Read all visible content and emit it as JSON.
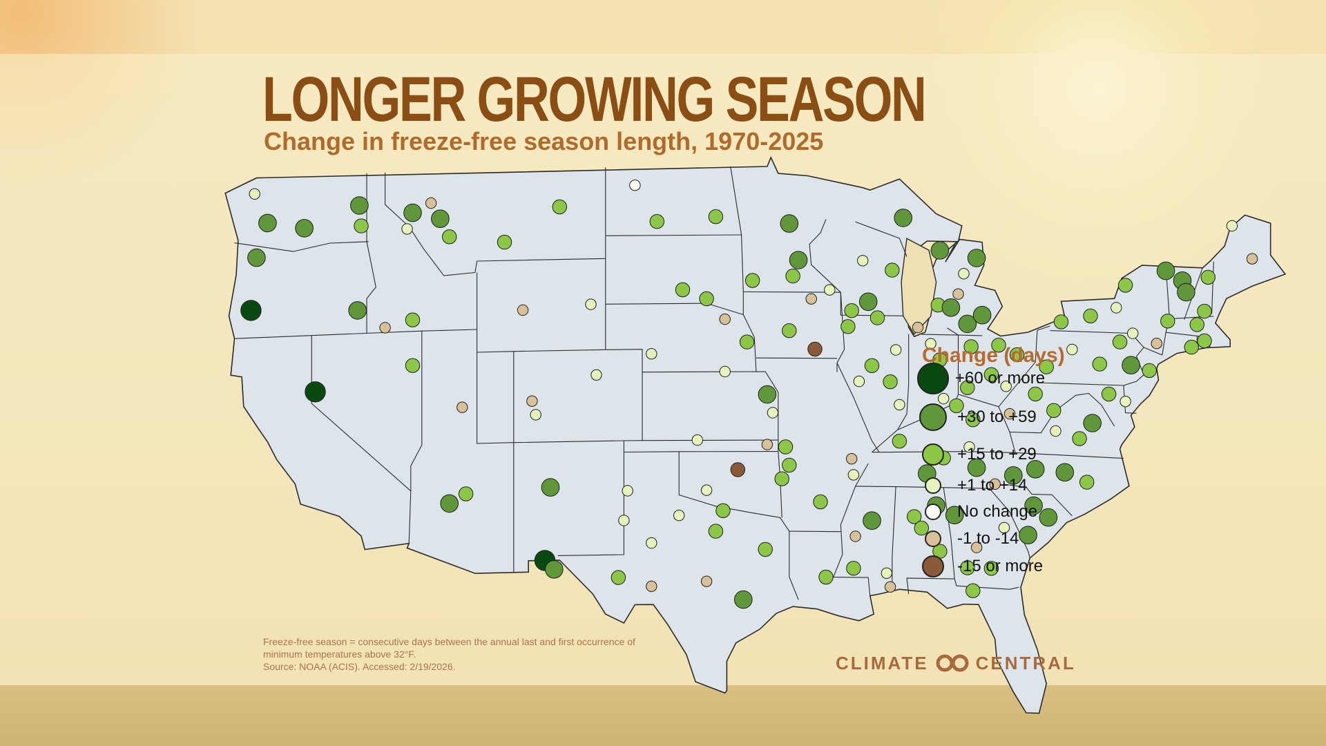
{
  "title": "LONGER GROWING SEASON",
  "subtitle": "Change in freeze-free season length, 1970-2025",
  "legend": {
    "title": "Change (days)",
    "items": [
      {
        "key": "c60",
        "label": "+60 or more",
        "color": "#0a4a12",
        "size": 46
      },
      {
        "key": "c30",
        "label": "+30 to +59",
        "color": "#5f973a",
        "size": 40
      },
      {
        "key": "c15",
        "label": "+15 to +29",
        "color": "#8cc748",
        "size": 32
      },
      {
        "key": "c1",
        "label": "+1 to +14",
        "color": "#e7f2bd",
        "size": 24
      },
      {
        "key": "c0",
        "label": "No change",
        "color": "#fbfbf6",
        "size": 24
      },
      {
        "key": "m1",
        "label": "-1 to -14",
        "color": "#d8c199",
        "size": 24
      },
      {
        "key": "m15",
        "label": "-15 or more",
        "color": "#8b5a3b",
        "size": 32
      }
    ]
  },
  "footnote": {
    "line1": "Freeze-free season = consecutive days between the annual last and first occurrence of",
    "line2": "minimum temperatures above 32°F.",
    "line3": "Source: NOAA (ACIS). Accessed: 2/19/2026."
  },
  "brand": {
    "left": "CLIMATE",
    "right": "CENTRAL"
  },
  "colors": {
    "map_fill": "#dde4ea",
    "state_line": "#2a2a2a",
    "title": "#8a4d14",
    "subtitle": "#b06a2c"
  },
  "stations": [
    {
      "lon": -123.1,
      "lat": 48.3,
      "c": "c1"
    },
    {
      "lon": -122.4,
      "lat": 47.0,
      "c": "c30"
    },
    {
      "lon": -120.4,
      "lat": 46.7,
      "c": "c30"
    },
    {
      "lon": -117.4,
      "lat": 47.6,
      "c": "c30"
    },
    {
      "lon": -117.3,
      "lat": 46.7,
      "c": "c15"
    },
    {
      "lon": -123.0,
      "lat": 45.5,
      "c": "c30"
    },
    {
      "lon": -123.3,
      "lat": 43.2,
      "c": "c60"
    },
    {
      "lon": -117.5,
      "lat": 43.0,
      "c": "c30"
    },
    {
      "lon": -114.5,
      "lat": 47.2,
      "c": "c30"
    },
    {
      "lon": -113.5,
      "lat": 47.6,
      "c": "m1"
    },
    {
      "lon": -113.0,
      "lat": 46.9,
      "c": "c30"
    },
    {
      "lon": -114.8,
      "lat": 46.5,
      "c": "c1"
    },
    {
      "lon": -112.5,
      "lat": 46.1,
      "c": "c15"
    },
    {
      "lon": -109.5,
      "lat": 45.8,
      "c": "c15"
    },
    {
      "lon": -106.5,
      "lat": 47.3,
      "c": "c15"
    },
    {
      "lon": -102.4,
      "lat": 48.2,
      "c": "c0"
    },
    {
      "lon": -101.2,
      "lat": 46.6,
      "c": "c15"
    },
    {
      "lon": -98.0,
      "lat": 46.8,
      "c": "c15"
    },
    {
      "lon": -116.0,
      "lat": 42.2,
      "c": "m1"
    },
    {
      "lon": -114.5,
      "lat": 42.5,
      "c": "c15"
    },
    {
      "lon": -119.8,
      "lat": 39.5,
      "c": "c60"
    },
    {
      "lon": -114.5,
      "lat": 40.5,
      "c": "c15"
    },
    {
      "lon": -108.5,
      "lat": 42.8,
      "c": "m1"
    },
    {
      "lon": -104.8,
      "lat": 43.0,
      "c": "c1"
    },
    {
      "lon": -99.8,
      "lat": 43.6,
      "c": "c15"
    },
    {
      "lon": -98.5,
      "lat": 43.2,
      "c": "c15"
    },
    {
      "lon": -96.0,
      "lat": 44.0,
      "c": "c15"
    },
    {
      "lon": -111.8,
      "lat": 38.6,
      "c": "m1"
    },
    {
      "lon": -108.0,
      "lat": 38.8,
      "c": "m1"
    },
    {
      "lon": -107.8,
      "lat": 38.2,
      "c": "c1"
    },
    {
      "lon": -104.5,
      "lat": 39.9,
      "c": "c1"
    },
    {
      "lon": -101.5,
      "lat": 40.8,
      "c": "c1"
    },
    {
      "lon": -97.5,
      "lat": 42.3,
      "c": "m1"
    },
    {
      "lon": -96.3,
      "lat": 41.3,
      "c": "c15"
    },
    {
      "lon": -97.5,
      "lat": 40.0,
      "c": "c1"
    },
    {
      "lon": -95.2,
      "lat": 39.0,
      "c": "c30"
    },
    {
      "lon": -94.9,
      "lat": 38.2,
      "c": "c1"
    },
    {
      "lon": -99.0,
      "lat": 37.0,
      "c": "c1"
    },
    {
      "lon": -95.2,
      "lat": 36.8,
      "c": "m1"
    },
    {
      "lon": -94.2,
      "lat": 36.7,
      "c": "c15"
    },
    {
      "lon": -96.8,
      "lat": 35.7,
      "c": "m15"
    },
    {
      "lon": -112.5,
      "lat": 34.4,
      "c": "c30"
    },
    {
      "lon": -111.6,
      "lat": 34.8,
      "c": "c15"
    },
    {
      "lon": -107.0,
      "lat": 35.0,
      "c": "c30"
    },
    {
      "lon": -107.3,
      "lat": 31.8,
      "c": "c60"
    },
    {
      "lon": -106.8,
      "lat": 31.4,
      "c": "c30"
    },
    {
      "lon": -102.8,
      "lat": 34.8,
      "c": "c1"
    },
    {
      "lon": -103.0,
      "lat": 33.5,
      "c": "c1"
    },
    {
      "lon": -101.5,
      "lat": 32.5,
      "c": "c1"
    },
    {
      "lon": -103.3,
      "lat": 31.0,
      "c": "c15"
    },
    {
      "lon": -101.5,
      "lat": 30.6,
      "c": "m1"
    },
    {
      "lon": -100.0,
      "lat": 33.7,
      "c": "c1"
    },
    {
      "lon": -98.5,
      "lat": 34.8,
      "c": "c1"
    },
    {
      "lon": -97.6,
      "lat": 33.9,
      "c": "c15"
    },
    {
      "lon": -98.0,
      "lat": 33.0,
      "c": "c15"
    },
    {
      "lon": -98.5,
      "lat": 30.8,
      "c": "m1"
    },
    {
      "lon": -96.5,
      "lat": 30.0,
      "c": "c30"
    },
    {
      "lon": -95.3,
      "lat": 32.2,
      "c": "c15"
    },
    {
      "lon": -94.4,
      "lat": 35.3,
      "c": "c15"
    },
    {
      "lon": -94.0,
      "lat": 35.9,
      "c": "c15"
    },
    {
      "lon": -92.3,
      "lat": 34.3,
      "c": "c15"
    },
    {
      "lon": -92.0,
      "lat": 31.0,
      "c": "c15"
    },
    {
      "lon": -90.4,
      "lat": 32.8,
      "c": "m1"
    },
    {
      "lon": -90.5,
      "lat": 31.4,
      "c": "c15"
    },
    {
      "lon": -89.5,
      "lat": 33.5,
      "c": "c30"
    },
    {
      "lon": -88.7,
      "lat": 31.2,
      "c": "c1"
    },
    {
      "lon": -88.5,
      "lat": 30.6,
      "c": "m1"
    },
    {
      "lon": -87.2,
      "lat": 33.7,
      "c": "c15"
    },
    {
      "lon": -86.8,
      "lat": 33.2,
      "c": "c15"
    },
    {
      "lon": -86.0,
      "lat": 34.2,
      "c": "c30"
    },
    {
      "lon": -85.0,
      "lat": 33.8,
      "c": "c30"
    },
    {
      "lon": -85.8,
      "lat": 32.2,
      "c": "c15"
    },
    {
      "lon": -84.3,
      "lat": 31.5,
      "c": "c15"
    },
    {
      "lon": -84.0,
      "lat": 30.5,
      "c": "c15"
    },
    {
      "lon": -90.5,
      "lat": 35.5,
      "c": "c1"
    },
    {
      "lon": -90.6,
      "lat": 36.2,
      "c": "m1"
    },
    {
      "lon": -88.0,
      "lat": 37.0,
      "c": "c15"
    },
    {
      "lon": -86.5,
      "lat": 35.6,
      "c": "c30"
    },
    {
      "lon": -85.6,
      "lat": 36.3,
      "c": "c15"
    },
    {
      "lon": -84.2,
      "lat": 36.8,
      "c": "c1"
    },
    {
      "lon": -83.8,
      "lat": 35.9,
      "c": "c30"
    },
    {
      "lon": -82.8,
      "lat": 35.2,
      "c": "m1"
    },
    {
      "lon": -81.8,
      "lat": 35.6,
      "c": "c30"
    },
    {
      "lon": -80.6,
      "lat": 35.9,
      "c": "c30"
    },
    {
      "lon": -79.0,
      "lat": 35.8,
      "c": "c30"
    },
    {
      "lon": -77.8,
      "lat": 35.4,
      "c": "c15"
    },
    {
      "lon": -80.7,
      "lat": 34.3,
      "c": "c30"
    },
    {
      "lon": -79.9,
      "lat": 33.8,
      "c": "c30"
    },
    {
      "lon": -81.0,
      "lat": 33.0,
      "c": "c30"
    },
    {
      "lon": -82.3,
      "lat": 33.3,
      "c": "c1"
    },
    {
      "lon": -83.8,
      "lat": 32.4,
      "c": "m1"
    },
    {
      "lon": -83.0,
      "lat": 31.5,
      "c": "c15"
    },
    {
      "lon": -94.0,
      "lat": 46.5,
      "c": "c30"
    },
    {
      "lon": -93.5,
      "lat": 44.9,
      "c": "c30"
    },
    {
      "lon": -93.8,
      "lat": 44.2,
      "c": "c15"
    },
    {
      "lon": -92.8,
      "lat": 43.2,
      "c": "m1"
    },
    {
      "lon": -91.8,
      "lat": 43.6,
      "c": "c1"
    },
    {
      "lon": -94.0,
      "lat": 41.8,
      "c": "c15"
    },
    {
      "lon": -92.6,
      "lat": 41.0,
      "c": "m15"
    },
    {
      "lon": -90.8,
      "lat": 42.0,
      "c": "c15"
    },
    {
      "lon": -90.0,
      "lat": 44.9,
      "c": "c1"
    },
    {
      "lon": -88.4,
      "lat": 44.5,
      "c": "c15"
    },
    {
      "lon": -89.7,
      "lat": 43.1,
      "c": "c30"
    },
    {
      "lon": -90.6,
      "lat": 42.7,
      "c": "c15"
    },
    {
      "lon": -89.2,
      "lat": 42.4,
      "c": "c15"
    },
    {
      "lon": -87.8,
      "lat": 46.8,
      "c": "c30"
    },
    {
      "lon": -85.8,
      "lat": 45.4,
      "c": "c30"
    },
    {
      "lon": -84.5,
      "lat": 44.4,
      "c": "c1"
    },
    {
      "lon": -83.8,
      "lat": 45.1,
      "c": "c30"
    },
    {
      "lon": -85.9,
      "lat": 43.0,
      "c": "c15"
    },
    {
      "lon": -85.2,
      "lat": 42.9,
      "c": "c30"
    },
    {
      "lon": -84.8,
      "lat": 43.5,
      "c": "m1"
    },
    {
      "lon": -84.3,
      "lat": 42.2,
      "c": "c30"
    },
    {
      "lon": -83.5,
      "lat": 42.6,
      "c": "c30"
    },
    {
      "lon": -87.0,
      "lat": 42.0,
      "c": "m1"
    },
    {
      "lon": -88.2,
      "lat": 41.0,
      "c": "c1"
    },
    {
      "lon": -89.5,
      "lat": 40.3,
      "c": "c15"
    },
    {
      "lon": -90.2,
      "lat": 39.6,
      "c": "c1"
    },
    {
      "lon": -88.5,
      "lat": 39.6,
      "c": "c15"
    },
    {
      "lon": -88.0,
      "lat": 38.6,
      "c": "c1"
    },
    {
      "lon": -86.3,
      "lat": 41.3,
      "c": "c1"
    },
    {
      "lon": -85.8,
      "lat": 40.6,
      "c": "c15"
    },
    {
      "lon": -86.3,
      "lat": 39.8,
      "c": "c15"
    },
    {
      "lon": -85.6,
      "lat": 38.9,
      "c": "c1"
    },
    {
      "lon": -84.1,
      "lat": 41.2,
      "c": "c15"
    },
    {
      "lon": -82.6,
      "lat": 41.3,
      "c": "c15"
    },
    {
      "lon": -81.6,
      "lat": 40.9,
      "c": "c15"
    },
    {
      "lon": -83.0,
      "lat": 40.0,
      "c": "c15"
    },
    {
      "lon": -82.2,
      "lat": 39.5,
      "c": "c1"
    },
    {
      "lon": -84.3,
      "lat": 39.4,
      "c": "c15"
    },
    {
      "lon": -84.9,
      "lat": 38.6,
      "c": "c15"
    },
    {
      "lon": -84.0,
      "lat": 38.0,
      "c": "c15"
    },
    {
      "lon": -82.0,
      "lat": 38.3,
      "c": "m1"
    },
    {
      "lon": -80.6,
      "lat": 39.2,
      "c": "c15"
    },
    {
      "lon": -79.6,
      "lat": 38.5,
      "c": "c15"
    },
    {
      "lon": -79.5,
      "lat": 37.6,
      "c": "c1"
    },
    {
      "lon": -78.2,
      "lat": 37.3,
      "c": "c15"
    },
    {
      "lon": -77.5,
      "lat": 38.0,
      "c": "c30"
    },
    {
      "lon": -80.0,
      "lat": 40.4,
      "c": "c15"
    },
    {
      "lon": -78.6,
      "lat": 41.2,
      "c": "c1"
    },
    {
      "lon": -77.1,
      "lat": 40.6,
      "c": "c15"
    },
    {
      "lon": -76.0,
      "lat": 41.6,
      "c": "c15"
    },
    {
      "lon": -75.4,
      "lat": 40.6,
      "c": "c30"
    },
    {
      "lon": -74.4,
      "lat": 40.4,
      "c": "c15"
    },
    {
      "lon": -76.6,
      "lat": 39.3,
      "c": "c15"
    },
    {
      "lon": -75.7,
      "lat": 39.0,
      "c": "c1"
    },
    {
      "lon": -79.2,
      "lat": 42.4,
      "c": "c15"
    },
    {
      "lon": -77.6,
      "lat": 42.7,
      "c": "c15"
    },
    {
      "lon": -76.2,
      "lat": 43.1,
      "c": "c1"
    },
    {
      "lon": -75.3,
      "lat": 42.0,
      "c": "c1"
    },
    {
      "lon": -74.0,
      "lat": 41.6,
      "c": "m1"
    },
    {
      "lon": -75.7,
      "lat": 44.1,
      "c": "c15"
    },
    {
      "lon": -73.5,
      "lat": 44.8,
      "c": "c30"
    },
    {
      "lon": -72.6,
      "lat": 44.4,
      "c": "c30"
    },
    {
      "lon": -72.4,
      "lat": 43.9,
      "c": "c30"
    },
    {
      "lon": -71.2,
      "lat": 44.6,
      "c": "c15"
    },
    {
      "lon": -73.4,
      "lat": 42.6,
      "c": "c15"
    },
    {
      "lon": -71.8,
      "lat": 42.5,
      "c": "c15"
    },
    {
      "lon": -71.4,
      "lat": 43.1,
      "c": "c15"
    },
    {
      "lon": -71.4,
      "lat": 41.8,
      "c": "c15"
    },
    {
      "lon": -72.1,
      "lat": 41.5,
      "c": "c15"
    },
    {
      "lon": -69.9,
      "lat": 46.9,
      "c": "c1"
    },
    {
      "lon": -68.8,
      "lat": 45.5,
      "c": "m1"
    }
  ]
}
